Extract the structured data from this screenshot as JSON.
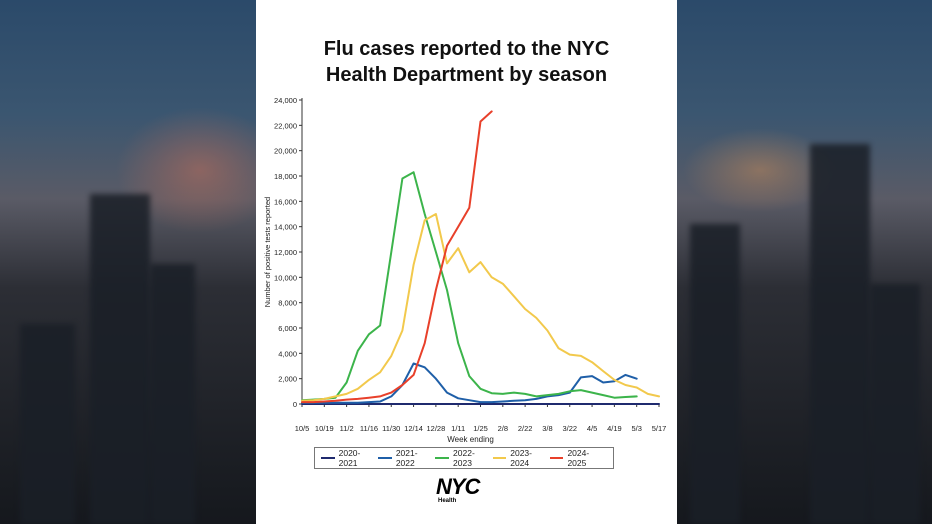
{
  "chart_data": {
    "type": "line",
    "title": "Flu cases reported to the NYC Health Department by season",
    "title_lines": [
      "Flu cases reported to the NYC",
      "Health Department by season"
    ],
    "xlabel": "Week ending",
    "ylabel": "Number of positive tests reported",
    "ylim": [
      0,
      24000
    ],
    "yticks": [
      "0",
      "2,000",
      "4,000",
      "6,000",
      "8,000",
      "10,000",
      "12,000",
      "14,000",
      "16,000",
      "18,000",
      "20,000",
      "22,000",
      "24,000"
    ],
    "xticks": [
      "10/5",
      "10/19",
      "11/2",
      "11/16",
      "11/30",
      "12/14",
      "12/28",
      "1/11",
      "1/25",
      "2/8",
      "2/22",
      "3/8",
      "3/22",
      "4/5",
      "4/19",
      "5/3",
      "5/17"
    ],
    "x_week_count": 33,
    "grid": false,
    "legend_position": "bottom",
    "series": [
      {
        "name": "2020-2021",
        "color": "#1f2a6e",
        "values": [
          0,
          0,
          0,
          0,
          0,
          0,
          0,
          0,
          0,
          0,
          0,
          0,
          0,
          0,
          0,
          0,
          0,
          0,
          0,
          0,
          0,
          0,
          0,
          0,
          0,
          0,
          0,
          0,
          0,
          0,
          0,
          0,
          0
        ]
      },
      {
        "name": "2021-2022",
        "color": "#1f5fa8",
        "values": [
          100,
          100,
          100,
          100,
          100,
          100,
          150,
          200,
          600,
          1500,
          3200,
          2900,
          2000,
          900,
          450,
          300,
          150,
          150,
          200,
          250,
          300,
          400,
          600,
          700,
          900,
          2100,
          2200,
          1700,
          1800,
          2300,
          2000
        ]
      },
      {
        "name": "2022-2023",
        "color": "#3cb44b",
        "values": [
          300,
          350,
          400,
          500,
          1700,
          4200,
          5500,
          6200,
          12000,
          17800,
          18300,
          15000,
          12000,
          9000,
          4800,
          2200,
          1200,
          850,
          800,
          900,
          800,
          600,
          700,
          800,
          1000,
          1100,
          900,
          700,
          500,
          550,
          600
        ]
      },
      {
        "name": "2023-2024",
        "color": "#f2c94c",
        "values": [
          250,
          300,
          400,
          600,
          800,
          1200,
          1900,
          2500,
          3800,
          5800,
          11000,
          14500,
          15000,
          11100,
          12300,
          10400,
          11200,
          10000,
          9500,
          8500,
          7500,
          6800,
          5800,
          4400,
          3900,
          3800,
          3300,
          2600,
          1900,
          1500,
          1300,
          800,
          600
        ]
      },
      {
        "name": "2024-2025",
        "color": "#e8402a",
        "values": [
          150,
          150,
          200,
          250,
          350,
          400,
          500,
          600,
          900,
          1500,
          2300,
          4800,
          9000,
          12500,
          14000,
          15500,
          22300,
          23100
        ]
      }
    ]
  },
  "logo": {
    "main": "NYC",
    "sub": "Health"
  }
}
